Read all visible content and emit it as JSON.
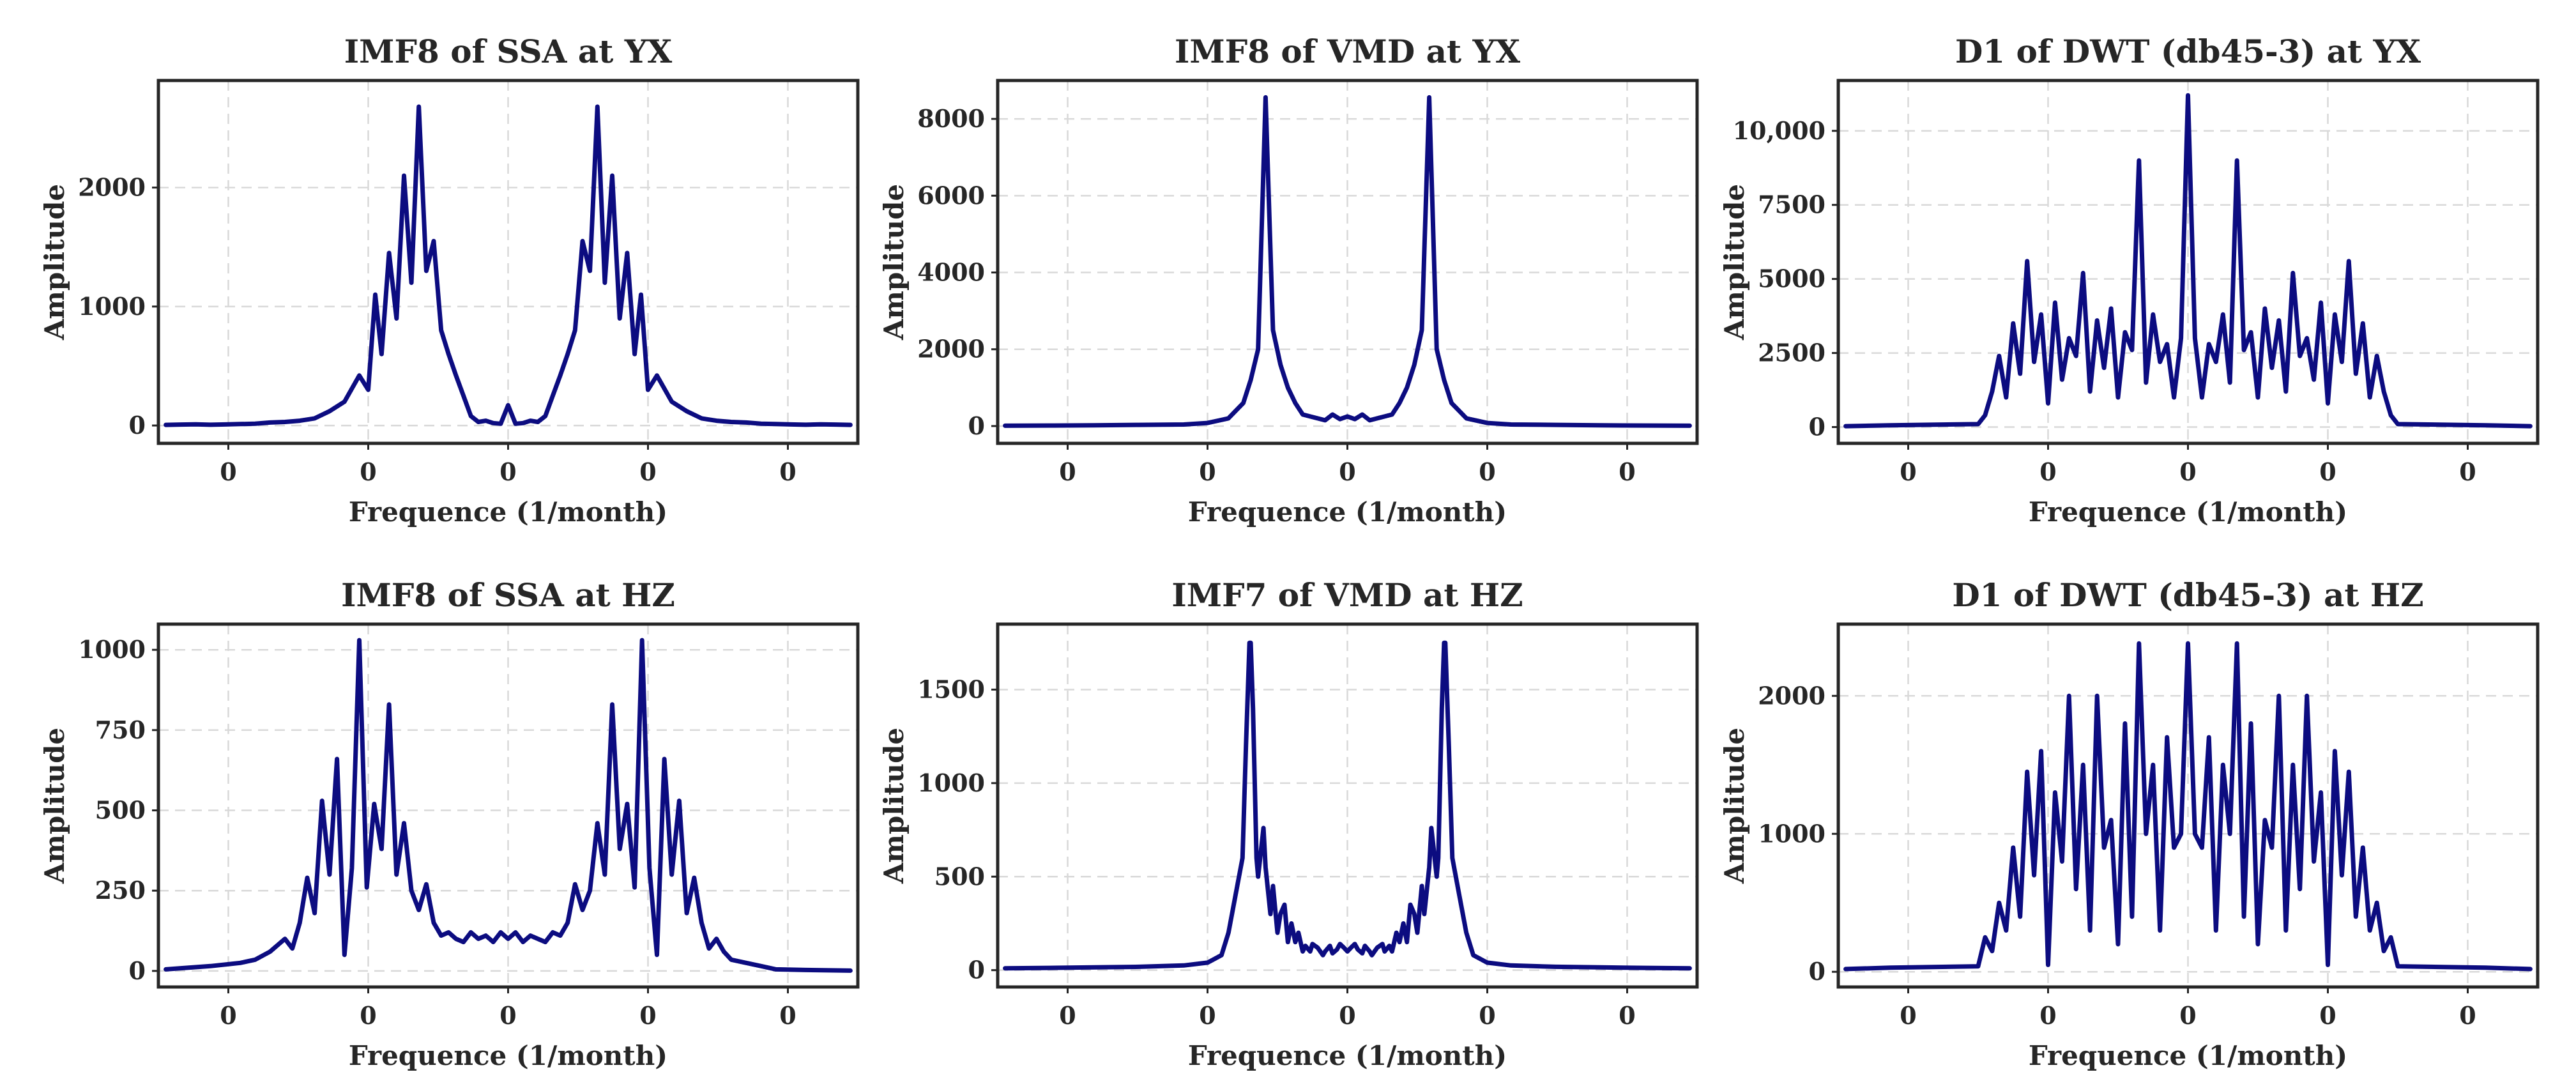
{
  "figure": {
    "line_color": "#0c0c80",
    "text_color": "#262626",
    "grid_color": "#d9d9d9"
  },
  "chart_data": [
    {
      "type": "line",
      "title": "IMF8 of SSA at YX",
      "xlabel": "Frequence (1/month)",
      "ylabel": "Amplitude",
      "xlim": [
        -0.5,
        0.5
      ],
      "ylim": [
        -150,
        2900
      ],
      "x_ticks": [
        -0.4,
        -0.2,
        0.0,
        0.2,
        0.4
      ],
      "x_tick_labels": [
        "0",
        "0",
        "0",
        "0",
        "0"
      ],
      "y_ticks": [
        0,
        1000,
        2000
      ],
      "y_tick_labels": [
        "0",
        "1000",
        "2000"
      ],
      "grid": true,
      "series": [
        {
          "name": "spectrum",
          "x": [
            -0.4894,
            -0.4681,
            -0.4468,
            -0.4255,
            -0.4043,
            -0.383,
            -0.3617,
            -0.3404,
            -0.3191,
            -0.2979,
            -0.2766,
            -0.2553,
            -0.234,
            -0.2128,
            -0.2,
            -0.19,
            -0.1809,
            -0.1702,
            -0.1595,
            -0.1489,
            -0.1383,
            -0.1277,
            -0.117,
            -0.1064,
            -0.0957,
            -0.0851,
            -0.0745,
            -0.0638,
            -0.0532,
            -0.0426,
            -0.0319,
            -0.0213,
            -0.0106,
            0.0,
            0.0106,
            0.0213,
            0.0319,
            0.0426,
            0.0532,
            0.0638,
            0.0745,
            0.0851,
            0.0957,
            0.1064,
            0.117,
            0.1277,
            0.1383,
            0.1489,
            0.1595,
            0.1702,
            0.1809,
            0.19,
            0.2,
            0.2128,
            0.234,
            0.2553,
            0.2766,
            0.2979,
            0.3191,
            0.3404,
            0.3617,
            0.383,
            0.4043,
            0.4255,
            0.4468,
            0.4681,
            0.4894
          ],
          "y": [
            5,
            8,
            10,
            6,
            9,
            12,
            15,
            25,
            30,
            40,
            60,
            120,
            200,
            420,
            300,
            1100,
            600,
            1450,
            900,
            2100,
            1200,
            2680,
            1300,
            1550,
            800,
            600,
            420,
            250,
            80,
            30,
            40,
            20,
            15,
            170,
            15,
            20,
            40,
            30,
            80,
            250,
            420,
            600,
            800,
            1550,
            1300,
            2680,
            1200,
            2100,
            900,
            1450,
            600,
            1100,
            300,
            420,
            200,
            120,
            60,
            40,
            30,
            25,
            15,
            12,
            9,
            6,
            10,
            8,
            5
          ]
        }
      ]
    },
    {
      "type": "line",
      "title": "IMF8 of VMD at YX",
      "xlabel": "Frequence (1/month)",
      "ylabel": "Amplitude",
      "xlim": [
        -0.5,
        0.5
      ],
      "ylim": [
        -450,
        9000
      ],
      "x_ticks": [
        -0.4,
        -0.2,
        0.0,
        0.2,
        0.4
      ],
      "x_tick_labels": [
        "0",
        "0",
        "0",
        "0",
        "0"
      ],
      "y_ticks": [
        0,
        2000,
        4000,
        6000,
        8000
      ],
      "y_tick_labels": [
        "0",
        "2000",
        "4000",
        "6000",
        "8000"
      ],
      "grid": true,
      "series": [
        {
          "name": "spectrum",
          "x": [
            -0.4894,
            -0.4255,
            -0.3617,
            -0.2979,
            -0.234,
            -0.2,
            -0.1702,
            -0.1489,
            -0.1383,
            -0.1277,
            -0.117,
            -0.1064,
            -0.0957,
            -0.0851,
            -0.0745,
            -0.0638,
            -0.0532,
            -0.0426,
            -0.0319,
            -0.0213,
            -0.0106,
            0.0,
            0.0106,
            0.0213,
            0.0319,
            0.0426,
            0.0532,
            0.0638,
            0.0745,
            0.0851,
            0.0957,
            0.1064,
            0.117,
            0.1277,
            0.1383,
            0.1489,
            0.1702,
            0.2,
            0.234,
            0.2979,
            0.3617,
            0.4255,
            0.4894
          ],
          "y": [
            10,
            15,
            20,
            30,
            40,
            80,
            200,
            600,
            1200,
            2000,
            8560,
            2500,
            1600,
            1000,
            600,
            300,
            250,
            200,
            150,
            300,
            180,
            250,
            180,
            300,
            150,
            200,
            250,
            300,
            600,
            1000,
            1600,
            2500,
            8560,
            2000,
            1200,
            600,
            200,
            80,
            40,
            30,
            20,
            15,
            10
          ]
        }
      ]
    },
    {
      "type": "line",
      "title": "D1 of DWT (db45-3) at YX",
      "xlabel": "Frequence (1/month)",
      "ylabel": "Amplitude",
      "xlim": [
        -0.5,
        0.5
      ],
      "ylim": [
        -550,
        11700
      ],
      "x_ticks": [
        -0.4,
        -0.2,
        0.0,
        0.2,
        0.4
      ],
      "x_tick_labels": [
        "0",
        "0",
        "0",
        "0",
        "0"
      ],
      "y_ticks": [
        0,
        2500,
        5000,
        7500,
        10000
      ],
      "y_tick_labels": [
        "0",
        "2500",
        "5000",
        "7500",
        "10,000"
      ],
      "grid": true,
      "series": [
        {
          "name": "spectrum",
          "x": [
            -0.4894,
            -0.4255,
            -0.3,
            -0.29,
            -0.28,
            -0.27,
            -0.26,
            -0.25,
            -0.24,
            -0.23,
            -0.22,
            -0.21,
            -0.2,
            -0.19,
            -0.18,
            -0.17,
            -0.16,
            -0.15,
            -0.14,
            -0.13,
            -0.12,
            -0.11,
            -0.1,
            -0.09,
            -0.08,
            -0.07,
            -0.06,
            -0.05,
            -0.04,
            -0.03,
            -0.02,
            -0.01,
            0.0,
            0.01,
            0.02,
            0.03,
            0.04,
            0.05,
            0.06,
            0.07,
            0.08,
            0.09,
            0.1,
            0.11,
            0.12,
            0.13,
            0.14,
            0.15,
            0.16,
            0.17,
            0.18,
            0.19,
            0.2,
            0.21,
            0.22,
            0.23,
            0.24,
            0.25,
            0.26,
            0.27,
            0.28,
            0.29,
            0.3,
            0.4255,
            0.4894
          ],
          "y": [
            30,
            60,
            100,
            400,
            1200,
            2400,
            1000,
            3500,
            1800,
            5600,
            2200,
            3800,
            800,
            4200,
            1600,
            3000,
            2400,
            5200,
            1200,
            3600,
            2000,
            4000,
            1000,
            3200,
            2600,
            9000,
            1500,
            3800,
            2200,
            2800,
            1000,
            3000,
            11200,
            3000,
            1000,
            2800,
            2200,
            3800,
            1500,
            9000,
            2600,
            3200,
            1000,
            4000,
            2000,
            3600,
            1200,
            5200,
            2400,
            3000,
            1600,
            4200,
            800,
            3800,
            2200,
            5600,
            1800,
            3500,
            1000,
            2400,
            1200,
            400,
            100,
            60,
            30
          ]
        }
      ]
    },
    {
      "type": "line",
      "title": "IMF8 of SSA at HZ",
      "xlabel": "Frequence (1/month)",
      "ylabel": "Amplitude",
      "xlim": [
        -0.5,
        0.5
      ],
      "ylim": [
        -50,
        1080
      ],
      "x_ticks": [
        -0.4,
        -0.2,
        0.0,
        0.2,
        0.4
      ],
      "x_tick_labels": [
        "0",
        "0",
        "0",
        "0",
        "0"
      ],
      "y_ticks": [
        0,
        250,
        500,
        750,
        1000
      ],
      "y_tick_labels": [
        "0",
        "250",
        "500",
        "750",
        "1000"
      ],
      "grid": true,
      "series": [
        {
          "name": "spectrum",
          "x": [
            -0.4894,
            -0.4255,
            -0.383,
            -0.3617,
            -0.3404,
            -0.3191,
            -0.3085,
            -0.2979,
            -0.2872,
            -0.2766,
            -0.266,
            -0.2553,
            -0.2447,
            -0.234,
            -0.2234,
            -0.2128,
            -0.2021,
            -0.1915,
            -0.1809,
            -0.1702,
            -0.1596,
            -0.1489,
            -0.1383,
            -0.1277,
            -0.117,
            -0.1064,
            -0.0957,
            -0.0851,
            -0.0745,
            -0.0638,
            -0.0532,
            -0.0426,
            -0.0319,
            -0.0213,
            -0.0106,
            0.0,
            0.0106,
            0.0213,
            0.0319,
            0.0426,
            0.0532,
            0.0638,
            0.0745,
            0.0851,
            0.0957,
            0.1064,
            0.117,
            0.1277,
            0.1383,
            0.1489,
            0.1596,
            0.1702,
            0.1809,
            0.1915,
            0.2021,
            0.2128,
            0.2234,
            0.234,
            0.2447,
            0.2553,
            0.266,
            0.2766,
            0.2872,
            0.2979,
            0.3085,
            0.3191,
            0.3404,
            0.3617,
            0.383,
            0.4255,
            0.4894
          ],
          "y": [
            5,
            15,
            25,
            35,
            60,
            100,
            70,
            150,
            290,
            180,
            530,
            300,
            660,
            50,
            320,
            1030,
            260,
            520,
            380,
            830,
            300,
            460,
            250,
            190,
            270,
            150,
            110,
            120,
            100,
            90,
            120,
            100,
            110,
            90,
            120,
            100,
            120,
            90,
            110,
            100,
            90,
            120,
            110,
            150,
            270,
            190,
            250,
            460,
            300,
            830,
            380,
            520,
            260,
            1030,
            320,
            50,
            660,
            300,
            530,
            180,
            290,
            150,
            70,
            100,
            60,
            35,
            25,
            15,
            5,
            3,
            1
          ]
        }
      ]
    },
    {
      "type": "line",
      "title": "IMF7 of VMD at HZ",
      "xlabel": "Frequence (1/month)",
      "ylabel": "Amplitude",
      "xlim": [
        -0.5,
        0.5
      ],
      "ylim": [
        -90,
        1850
      ],
      "x_ticks": [
        -0.4,
        -0.2,
        0.0,
        0.2,
        0.4
      ],
      "x_tick_labels": [
        "0",
        "0",
        "0",
        "0",
        "0"
      ],
      "y_ticks": [
        0,
        500,
        1000,
        1500
      ],
      "y_tick_labels": [
        "0",
        "500",
        "1000",
        "1500"
      ],
      "grid": true,
      "series": [
        {
          "name": "spectrum",
          "x": [
            -0.4894,
            -0.4255,
            -0.3617,
            -0.2979,
            -0.234,
            -0.2,
            -0.18,
            -0.17,
            -0.16,
            -0.15,
            -0.145,
            -0.14,
            -0.1383,
            -0.135,
            -0.13,
            -0.1277,
            -0.12,
            -0.117,
            -0.11,
            -0.1064,
            -0.1,
            -0.0957,
            -0.09,
            -0.0851,
            -0.08,
            -0.0745,
            -0.07,
            -0.0638,
            -0.06,
            -0.0532,
            -0.05,
            -0.0426,
            -0.035,
            -0.0319,
            -0.025,
            -0.0213,
            -0.015,
            -0.0106,
            -0.005,
            0.0,
            0.005,
            0.0106,
            0.015,
            0.0213,
            0.025,
            0.0319,
            0.035,
            0.0426,
            0.05,
            0.0532,
            0.06,
            0.0638,
            0.07,
            0.0745,
            0.08,
            0.0851,
            0.09,
            0.0957,
            0.1,
            0.1064,
            0.11,
            0.117,
            0.12,
            0.1277,
            0.13,
            0.135,
            0.1383,
            0.14,
            0.145,
            0.15,
            0.16,
            0.17,
            0.18,
            0.2,
            0.234,
            0.2979,
            0.3617,
            0.4255,
            0.4894
          ],
          "y": [
            10,
            12,
            15,
            18,
            25,
            40,
            80,
            200,
            400,
            600,
            1200,
            1750,
            1750,
            1400,
            600,
            500,
            760,
            550,
            300,
            450,
            200,
            300,
            350,
            150,
            250,
            150,
            200,
            100,
            130,
            100,
            140,
            120,
            80,
            100,
            130,
            90,
            110,
            140,
            120,
            100,
            120,
            140,
            110,
            90,
            130,
            100,
            80,
            120,
            140,
            100,
            130,
            100,
            200,
            150,
            250,
            150,
            350,
            300,
            200,
            450,
            300,
            550,
            760,
            500,
            600,
            1400,
            1750,
            1750,
            1200,
            600,
            400,
            200,
            80,
            40,
            25,
            18,
            15,
            12,
            10
          ]
        }
      ]
    },
    {
      "type": "line",
      "title": "D1 of DWT (db45-3) at HZ",
      "xlabel": "Frequence (1/month)",
      "ylabel": "Amplitude",
      "xlim": [
        -0.5,
        0.5
      ],
      "ylim": [
        -110,
        2520
      ],
      "x_ticks": [
        -0.4,
        -0.2,
        0.0,
        0.2,
        0.4
      ],
      "x_tick_labels": [
        "0",
        "0",
        "0",
        "0",
        "0"
      ],
      "y_ticks": [
        0,
        1000,
        2000
      ],
      "y_tick_labels": [
        "0",
        "1000",
        "2000"
      ],
      "grid": true,
      "series": [
        {
          "name": "spectrum",
          "x": [
            -0.4894,
            -0.4255,
            -0.3,
            -0.29,
            -0.28,
            -0.27,
            -0.26,
            -0.25,
            -0.24,
            -0.23,
            -0.22,
            -0.21,
            -0.2,
            -0.19,
            -0.18,
            -0.17,
            -0.16,
            -0.15,
            -0.14,
            -0.13,
            -0.12,
            -0.11,
            -0.1,
            -0.09,
            -0.08,
            -0.07,
            -0.06,
            -0.05,
            -0.04,
            -0.03,
            -0.02,
            -0.01,
            0.0,
            0.01,
            0.02,
            0.03,
            0.04,
            0.05,
            0.06,
            0.07,
            0.08,
            0.09,
            0.1,
            0.11,
            0.12,
            0.13,
            0.14,
            0.15,
            0.16,
            0.17,
            0.18,
            0.19,
            0.2,
            0.21,
            0.22,
            0.23,
            0.24,
            0.25,
            0.26,
            0.27,
            0.28,
            0.29,
            0.3,
            0.4255,
            0.4894
          ],
          "y": [
            20,
            30,
            40,
            250,
            150,
            500,
            300,
            900,
            400,
            1450,
            700,
            1600,
            50,
            1300,
            800,
            2000,
            600,
            1500,
            300,
            2000,
            900,
            1100,
            200,
            1800,
            400,
            2380,
            1000,
            1500,
            300,
            1700,
            900,
            1000,
            2380,
            1000,
            900,
            1700,
            300,
            1500,
            1000,
            2380,
            400,
            1800,
            200,
            1100,
            900,
            2000,
            300,
            1500,
            600,
            2000,
            800,
            1300,
            50,
            1600,
            700,
            1450,
            400,
            900,
            300,
            500,
            150,
            250,
            40,
            30,
            20
          ]
        }
      ]
    }
  ]
}
